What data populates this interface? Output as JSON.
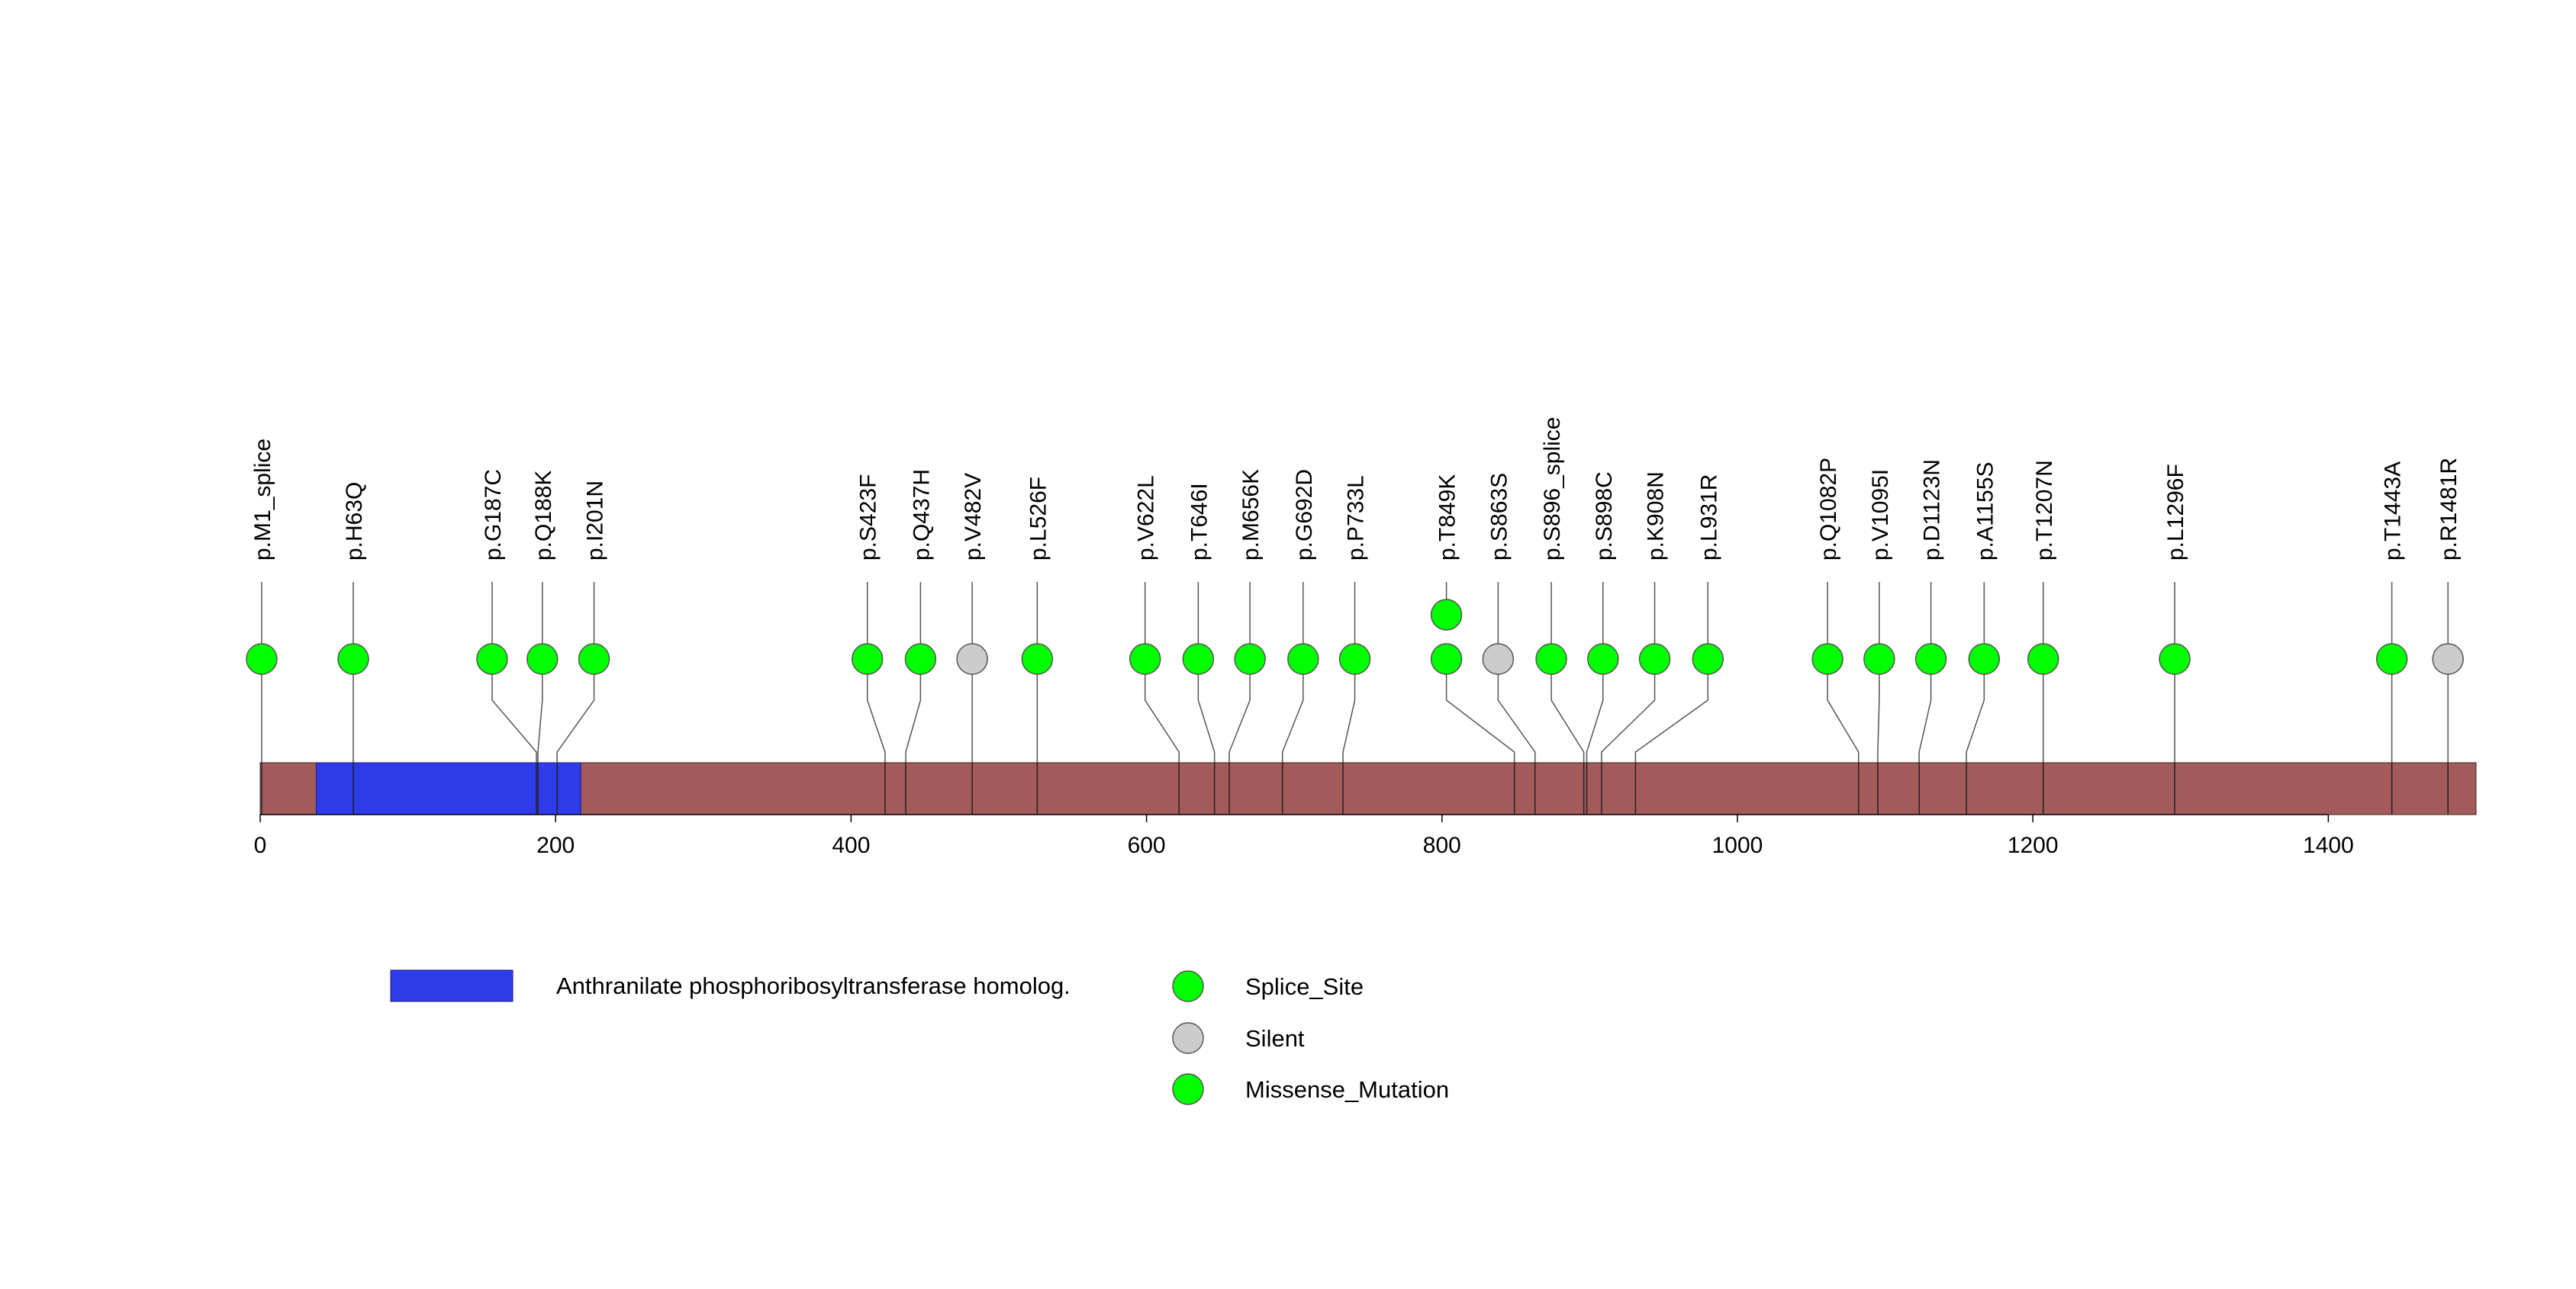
{
  "chart_data": {
    "type": "lollipop",
    "xlim": [
      0,
      1500
    ],
    "x_ticks": [
      0,
      200,
      400,
      600,
      800,
      1000,
      1200,
      1400
    ],
    "protein_length": 1500,
    "protein_color": "#a35a5a",
    "domains": [
      {
        "name": "Anthranilate phosphoribosyltransferase homolog.",
        "start": 38,
        "end": 217,
        "color": "#2d3ce8"
      }
    ],
    "mutations": [
      {
        "label": "p.M1_splice",
        "position": 1,
        "display_x": 1,
        "type": "Splice_Site",
        "count": 1
      },
      {
        "label": "p.H63Q",
        "position": 63,
        "display_x": 63,
        "type": "Missense_Mutation",
        "count": 1
      },
      {
        "label": "p.G187C",
        "position": 187,
        "display_x": 157,
        "type": "Missense_Mutation",
        "count": 1
      },
      {
        "label": "p.Q188K",
        "position": 188,
        "display_x": 191,
        "type": "Missense_Mutation",
        "count": 1
      },
      {
        "label": "p.I201N",
        "position": 201,
        "display_x": 226,
        "type": "Missense_Mutation",
        "count": 1
      },
      {
        "label": "p.S423F",
        "position": 423,
        "display_x": 411,
        "type": "Missense_Mutation",
        "count": 1
      },
      {
        "label": "p.Q437H",
        "position": 437,
        "display_x": 447,
        "type": "Missense_Mutation",
        "count": 1
      },
      {
        "label": "p.V482V",
        "position": 482,
        "display_x": 482,
        "type": "Silent",
        "count": 1
      },
      {
        "label": "p.L526F",
        "position": 526,
        "display_x": 526,
        "type": "Missense_Mutation",
        "count": 1
      },
      {
        "label": "p.V622L",
        "position": 622,
        "display_x": 599,
        "type": "Missense_Mutation",
        "count": 1
      },
      {
        "label": "p.T646I",
        "position": 646,
        "display_x": 635,
        "type": "Missense_Mutation",
        "count": 1
      },
      {
        "label": "p.M656K",
        "position": 656,
        "display_x": 670,
        "type": "Missense_Mutation",
        "count": 1
      },
      {
        "label": "p.G692D",
        "position": 692,
        "display_x": 706,
        "type": "Missense_Mutation",
        "count": 1
      },
      {
        "label": "p.P733L",
        "position": 733,
        "display_x": 741,
        "type": "Missense_Mutation",
        "count": 1
      },
      {
        "label": "p.T849K",
        "position": 849,
        "display_x": 803,
        "type": "Missense_Mutation",
        "count": 2
      },
      {
        "label": "p.S863S",
        "position": 863,
        "display_x": 838,
        "type": "Silent",
        "count": 1
      },
      {
        "label": "p.S896_splice",
        "position": 896,
        "display_x": 874,
        "type": "Splice_Site",
        "count": 1
      },
      {
        "label": "p.S898C",
        "position": 898,
        "display_x": 909,
        "type": "Missense_Mutation",
        "count": 1
      },
      {
        "label": "p.K908N",
        "position": 908,
        "display_x": 944,
        "type": "Missense_Mutation",
        "count": 1
      },
      {
        "label": "p.L931R",
        "position": 931,
        "display_x": 980,
        "type": "Missense_Mutation",
        "count": 1
      },
      {
        "label": "p.Q1082P",
        "position": 1082,
        "display_x": 1061,
        "type": "Missense_Mutation",
        "count": 1
      },
      {
        "label": "p.V1095I",
        "position": 1095,
        "display_x": 1096,
        "type": "Missense_Mutation",
        "count": 1
      },
      {
        "label": "p.D1123N",
        "position": 1123,
        "display_x": 1131,
        "type": "Missense_Mutation",
        "count": 1
      },
      {
        "label": "p.A1155S",
        "position": 1155,
        "display_x": 1167,
        "type": "Missense_Mutation",
        "count": 1
      },
      {
        "label": "p.T1207N",
        "position": 1207,
        "display_x": 1207,
        "type": "Missense_Mutation",
        "count": 1
      },
      {
        "label": "p.L1296F",
        "position": 1296,
        "display_x": 1296,
        "type": "Missense_Mutation",
        "count": 1
      },
      {
        "label": "p.T1443A",
        "position": 1443,
        "display_x": 1443,
        "type": "Missense_Mutation",
        "count": 1
      },
      {
        "label": "p.R1481R",
        "position": 1481,
        "display_x": 1481,
        "type": "Silent",
        "count": 1
      }
    ],
    "mutation_colors": {
      "Splice_Site": "#00ff00",
      "Silent": "#cccccc",
      "Missense_Mutation": "#00ff00"
    },
    "legend": {
      "domains": [
        {
          "label": "Anthranilate phosphoribosyltransferase homolog.",
          "color": "#2d3ce8"
        }
      ],
      "mutation_types": [
        {
          "label": "Splice_Site",
          "color": "#00ff00"
        },
        {
          "label": "Silent",
          "color": "#cccccc"
        },
        {
          "label": "Missense_Mutation",
          "color": "#00ff00"
        }
      ]
    }
  }
}
